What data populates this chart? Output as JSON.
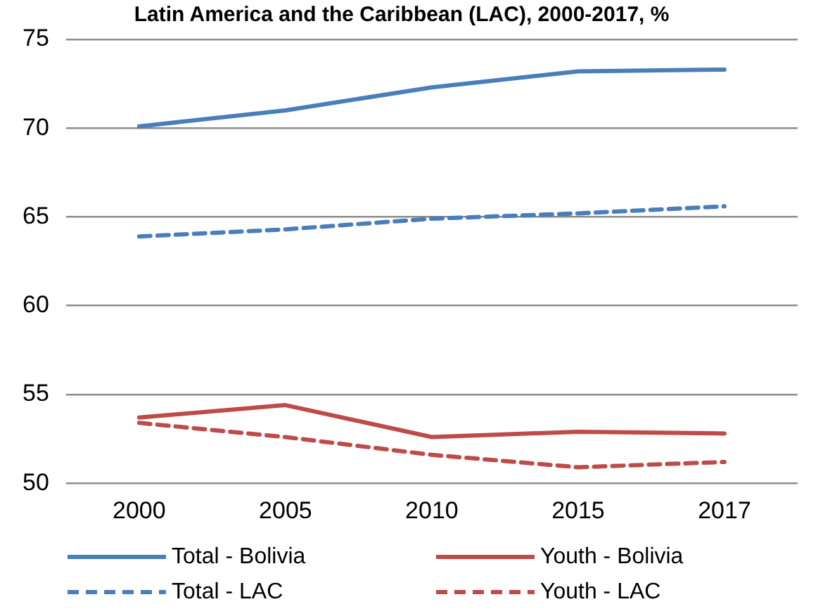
{
  "chart_data": {
    "type": "line",
    "title": "Latin America and the Caribbean (LAC), 2000-2017, %",
    "categories": [
      "2000",
      "2005",
      "2010",
      "2015",
      "2017"
    ],
    "series": [
      {
        "name": "Total - Bolivia",
        "color": "#4a7ebb",
        "values": [
          70.1,
          71.0,
          72.3,
          73.2,
          73.3
        ]
      },
      {
        "name": "Youth - Bolivia",
        "color": "#be4b48",
        "values": [
          53.7,
          54.4,
          52.6,
          52.9,
          52.8
        ]
      },
      {
        "name": "Total - LAC",
        "color": "#4a7ebb",
        "line_style": "dashed",
        "values": [
          63.9,
          64.3,
          64.9,
          65.2,
          65.6
        ]
      },
      {
        "name": "Youth - LAC",
        "color": "#be4b48",
        "line_style": "dashed",
        "values": [
          53.4,
          52.6,
          51.6,
          50.9,
          51.2
        ]
      }
    ],
    "ylim": [
      50,
      75
    ],
    "yticks": [
      50,
      55,
      60,
      65,
      70,
      75
    ],
    "grid": "y",
    "legend": "bottom",
    "marker": "none"
  }
}
